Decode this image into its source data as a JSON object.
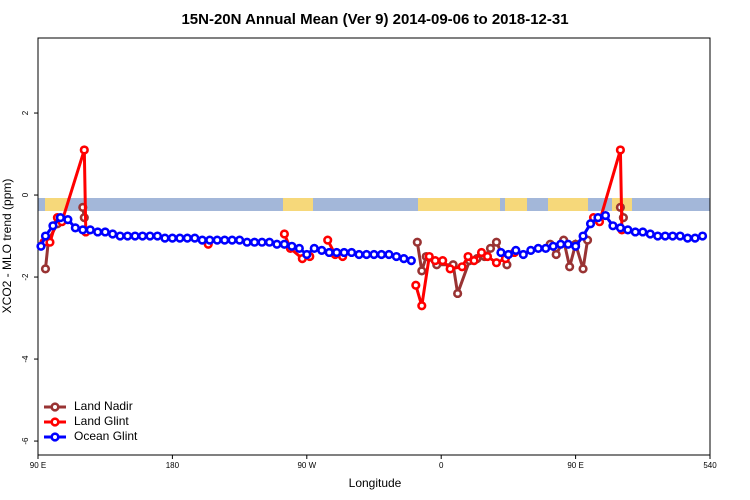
{
  "chart_data": {
    "type": "line",
    "title": "15N-20N Annual Mean (Ver 9)   2014-09-06 to 2018-12-31",
    "x_label": "Longitude",
    "y_label": "XCO2 - MLO trend (ppm)",
    "xlim": [
      90,
      540
    ],
    "ylim": [
      -6.34,
      3.83
    ],
    "xticks": [
      {
        "value": 90,
        "label": "90 E"
      },
      180,
      {
        "value": 270,
        "label": "90 W"
      },
      {
        "value": 360,
        "label": "0"
      },
      {
        "value": 450,
        "label": "90 E"
      },
      540
    ],
    "yticks": [
      -6,
      -4,
      -2,
      0,
      2
    ],
    "legend": "bottom-left",
    "series": [
      {
        "name": "Land Nadir",
        "color": "#993333",
        "x": [
          95,
          97,
          103,
          110,
          120,
          121,
          300,
          344,
          347,
          350,
          357,
          368,
          371,
          379,
          384,
          389,
          393,
          397,
          404,
          420,
          433,
          437,
          442,
          446,
          450,
          455,
          458,
          470,
          480,
          482
        ],
        "values": [
          -1.8,
          -1.1,
          -0.7,
          null,
          -0.3,
          -0.55,
          null,
          -1.15,
          -1.85,
          -1.5,
          -1.7,
          -1.7,
          -2.4,
          -1.6,
          -1.55,
          -1.5,
          -1.3,
          -1.15,
          -1.7,
          null,
          -1.2,
          -1.45,
          -1.1,
          -1.75,
          -1.2,
          -1.8,
          -1.1,
          null,
          -0.3,
          -0.55
        ]
      },
      {
        "name": "Land Glint",
        "color": "#ff0000",
        "x": [
          94,
          98,
          103,
          106,
          121,
          122,
          160,
          204,
          230,
          255,
          259,
          267,
          272,
          278,
          284,
          289,
          294,
          320,
          343,
          347,
          352,
          356,
          361,
          366,
          374,
          378,
          382,
          387,
          391,
          397,
          403,
          409,
          440,
          462,
          466,
          480,
          481
        ],
        "values": [
          -1.15,
          -1.15,
          -0.55,
          -0.65,
          1.1,
          -0.9,
          null,
          -1.2,
          null,
          -0.95,
          -1.3,
          -1.55,
          -1.5,
          null,
          -1.1,
          -1.45,
          -1.5,
          null,
          -2.2,
          -2.7,
          -1.5,
          -1.6,
          -1.6,
          -1.8,
          -1.75,
          -1.5,
          -1.6,
          -1.4,
          -1.5,
          -1.65,
          -1.55,
          -1.4,
          null,
          -0.55,
          -0.65,
          1.1,
          -0.85
        ]
      },
      {
        "name": "Ocean Glint",
        "color": "#0000ff",
        "x": [
          92,
          95,
          100,
          105,
          110,
          115,
          120,
          125,
          130,
          135,
          140,
          145,
          150,
          155,
          160,
          165,
          170,
          175,
          180,
          185,
          190,
          195,
          200,
          205,
          210,
          215,
          220,
          225,
          230,
          235,
          240,
          245,
          250,
          255,
          260,
          265,
          270,
          275,
          280,
          285,
          290,
          295,
          300,
          305,
          310,
          315,
          320,
          325,
          330,
          335,
          340,
          370,
          400,
          405,
          410,
          415,
          420,
          425,
          430,
          435,
          440,
          445,
          450,
          455,
          460,
          465,
          470,
          475,
          480,
          485,
          490,
          495,
          500,
          505,
          510,
          515,
          520,
          525,
          530,
          535
        ],
        "values": [
          -1.25,
          -1.0,
          -0.75,
          -0.55,
          -0.6,
          -0.8,
          -0.85,
          -0.85,
          -0.9,
          -0.9,
          -0.95,
          -1.0,
          -1.0,
          -1.0,
          -1.0,
          -1.0,
          -1.0,
          -1.05,
          -1.05,
          -1.05,
          -1.05,
          -1.05,
          -1.1,
          -1.1,
          -1.1,
          -1.1,
          -1.1,
          -1.1,
          -1.15,
          -1.15,
          -1.15,
          -1.15,
          -1.2,
          -1.2,
          -1.25,
          -1.3,
          -1.45,
          -1.3,
          -1.35,
          -1.4,
          -1.4,
          -1.4,
          -1.4,
          -1.45,
          -1.45,
          -1.45,
          -1.45,
          -1.45,
          -1.5,
          -1.55,
          -1.6,
          null,
          -1.4,
          -1.45,
          -1.35,
          -1.45,
          -1.35,
          -1.3,
          -1.3,
          -1.25,
          -1.2,
          -1.2,
          -1.25,
          -1.0,
          -0.7,
          -0.55,
          -0.5,
          -0.75,
          -0.8,
          -0.85,
          -0.9,
          -0.9,
          -0.95,
          -1.0,
          -1.0,
          -1.0,
          -1.0,
          -1.05,
          -1.05,
          -1.0
        ]
      }
    ]
  }
}
